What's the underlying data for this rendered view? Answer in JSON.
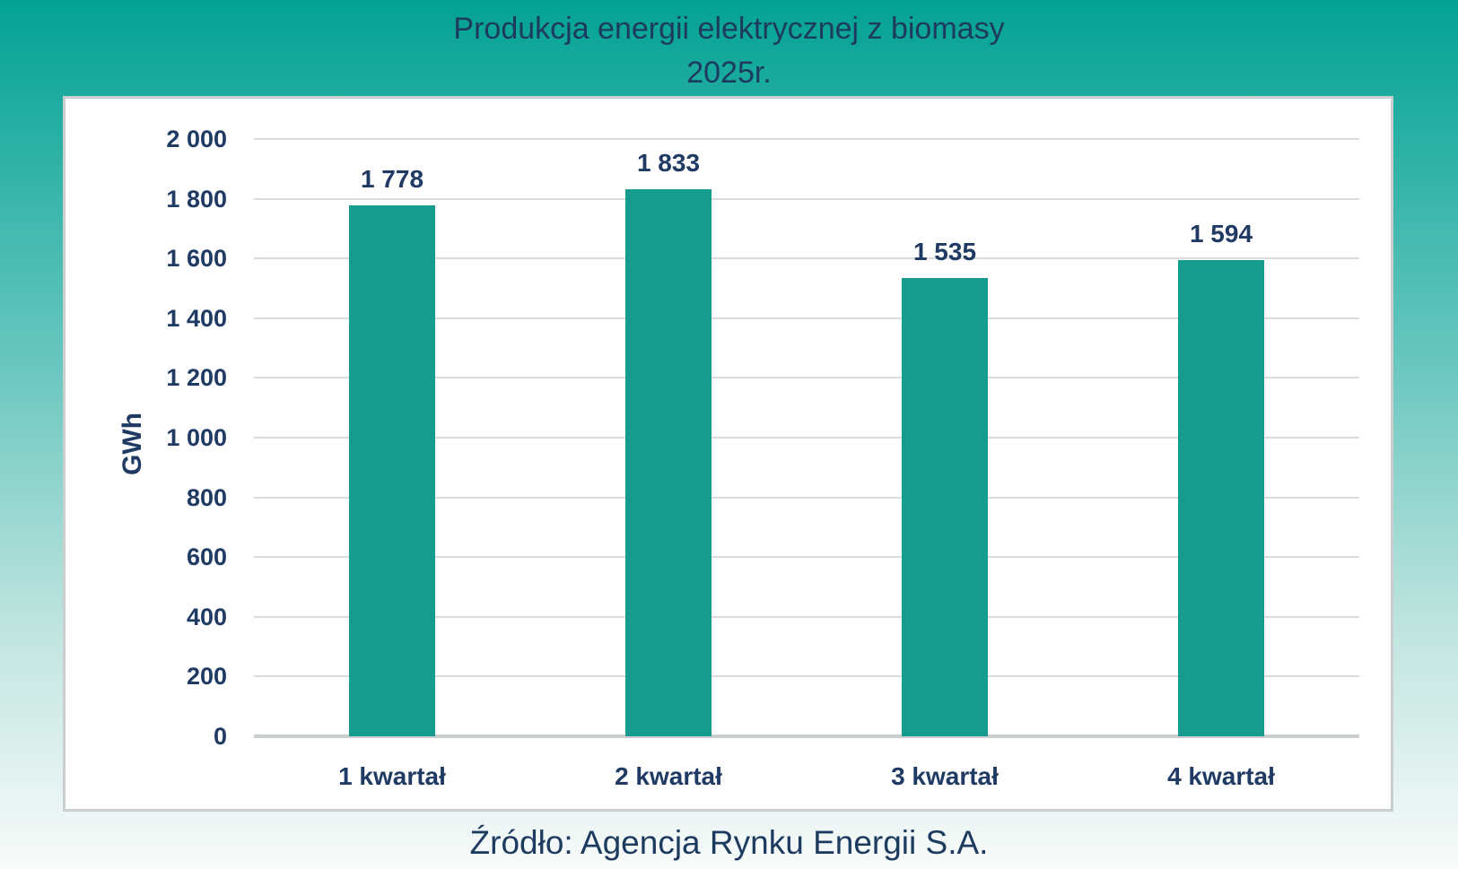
{
  "page": {
    "background_top_color": "#03A294",
    "background_bottom_color": "#F8FBFA"
  },
  "title": {
    "line1": "Produkcja energii elektrycznej z biomasy",
    "line2": "2025r."
  },
  "source": "Źródło: Agencja Rynku Energii S.A.",
  "chart_data": {
    "type": "bar",
    "title": "Produkcja energii elektrycznej z biomasy 2025r.",
    "categories": [
      "1 kwartał",
      "2 kwartał",
      "3 kwartał",
      "4 kwartał"
    ],
    "values": [
      1778,
      1833,
      1535,
      1594
    ],
    "value_labels": [
      "1 778",
      "1 833",
      "1 535",
      "1 594"
    ],
    "xlabel": "",
    "ylabel": "GWh",
    "ylim": [
      0,
      2000
    ],
    "ytick_step": 200,
    "ytick_labels": [
      "0",
      "200",
      "400",
      "600",
      "800",
      "1 000",
      "1 200",
      "1 400",
      "1 600",
      "1 800",
      "2 000"
    ],
    "grid": true,
    "legend": "none",
    "bar_color": "#169B8F",
    "label_color": "#1F3A63",
    "gridline_color": "#DADDDD"
  }
}
